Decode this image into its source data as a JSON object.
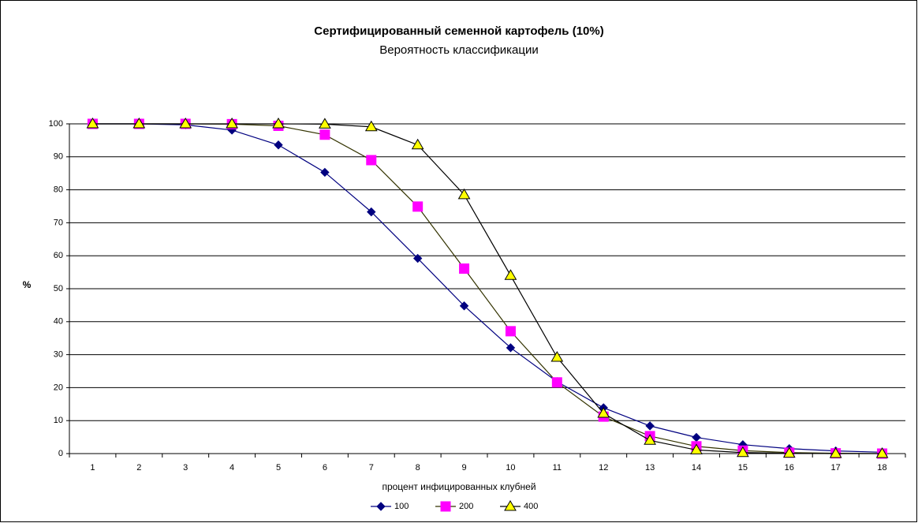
{
  "chart_data": {
    "type": "line",
    "title": "Сертифицированный семенной картофель (10%)",
    "subtitle": "Вероятность классификации",
    "x_label": "процент инфицированных клубней",
    "y_label": "%",
    "categories": [
      "1",
      "2",
      "3",
      "4",
      "5",
      "6",
      "7",
      "8",
      "9",
      "10",
      "11",
      "12",
      "13",
      "14",
      "15",
      "16",
      "17",
      "18"
    ],
    "series": [
      {
        "name": "100",
        "color": "#000080",
        "marker_color": "#000080",
        "marker": "diamond",
        "values": [
          100,
          100,
          99.7,
          98.1,
          93.6,
          85.3,
          73.3,
          59.2,
          44.8,
          32.1,
          21.8,
          13.9,
          8.4,
          4.9,
          2.7,
          1.5,
          0.8,
          0.4
        ]
      },
      {
        "name": "200",
        "color": "#333300",
        "marker_color": "#ff00ff",
        "marker": "square",
        "values": [
          100,
          100,
          100,
          99.9,
          99.4,
          96.7,
          89,
          74.9,
          56.1,
          37.1,
          21.6,
          11.2,
          5.3,
          2.2,
          0.9,
          0.3,
          0.1,
          0
        ]
      },
      {
        "name": "400",
        "color": "#000000",
        "marker_color": "#ffff00",
        "marker": "triangle",
        "values": [
          100,
          100,
          100,
          100,
          100,
          99.9,
          99.1,
          93.6,
          78.5,
          54,
          29.2,
          12.2,
          4,
          1.1,
          0.3,
          0.1,
          0,
          0
        ]
      }
    ],
    "ylim": [
      0,
      100
    ],
    "yticks": [
      0,
      10,
      20,
      30,
      40,
      50,
      60,
      70,
      80,
      90,
      100
    ],
    "grid": true,
    "legend": "bottom"
  }
}
